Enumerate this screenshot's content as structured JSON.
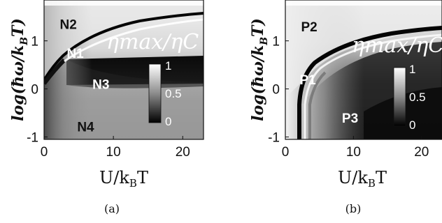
{
  "chart_data": [
    {
      "type": "heatmap",
      "panel_caption": "(a)",
      "xlabel": "U/k",
      "xlabel_sub": "B",
      "xlabel_tail": "T",
      "ylabel": "log(ħω/k",
      "ylabel_sub": "B",
      "ylabel_tail": "T)",
      "xlim": [
        0,
        23
      ],
      "ylim": [
        -1.05,
        1.85
      ],
      "x_ticks": [
        0,
        10,
        20
      ],
      "y_ticks": [
        -1,
        0,
        1
      ],
      "x_tick_labels": [
        "0",
        "10",
        "20"
      ],
      "y_tick_labels": [
        "-1",
        "0",
        "1"
      ],
      "overlay_label": "ηmax/ηC",
      "colorbar": {
        "range": [
          0,
          1
        ],
        "ticks": [
          "1",
          "0.5",
          "0"
        ]
      },
      "regions": [
        {
          "label": "N2",
          "x": 3.5,
          "y": 1.35
        },
        {
          "label": "N1",
          "x": 4.5,
          "y": 0.75
        },
        {
          "label": "N3",
          "x": 8.2,
          "y": 0.1
        },
        {
          "label": "N4",
          "x": 6.0,
          "y": -0.78
        }
      ]
    },
    {
      "type": "heatmap",
      "panel_caption": "(b)",
      "xlabel": "U/k",
      "xlabel_sub": "B",
      "xlabel_tail": "T",
      "ylabel": "log(ħω/k",
      "ylabel_sub": "B",
      "ylabel_tail": "T)",
      "xlim": [
        0,
        23
      ],
      "ylim": [
        -1.05,
        1.85
      ],
      "x_ticks": [
        0,
        10,
        20
      ],
      "y_ticks": [
        -1,
        0,
        1
      ],
      "x_tick_labels": [
        "0",
        "10",
        "20"
      ],
      "y_tick_labels": [
        "-1",
        "0",
        "1"
      ],
      "overlay_label": "ηmax/ηC",
      "colorbar": {
        "range": [
          0,
          1
        ],
        "ticks": [
          "1",
          "0.5",
          "0"
        ]
      },
      "regions": [
        {
          "label": "P2",
          "x": 3.5,
          "y": 1.3
        },
        {
          "label": "P1",
          "x": 3.3,
          "y": 0.2
        },
        {
          "label": "P3",
          "x": 9.5,
          "y": -0.6
        }
      ]
    }
  ]
}
